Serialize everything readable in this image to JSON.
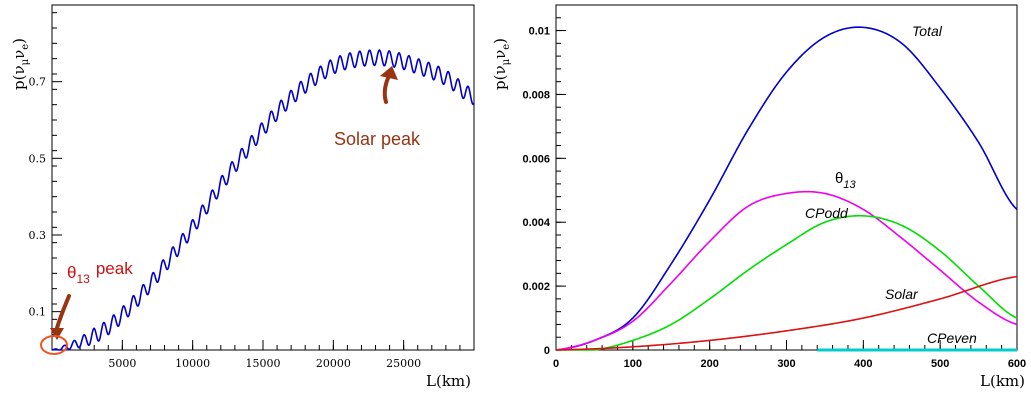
{
  "chart_data": [
    {
      "type": "line",
      "panel": "left",
      "xlabel": "L(km)",
      "ylabel": "p(ν_μ ν_e)",
      "ylabel_parts": {
        "p": "p(",
        "nu1": "ν",
        "sub1": "μ",
        "nu2": "ν",
        "sub2": "e",
        "close": ")"
      },
      "xlim": [
        0,
        30000
      ],
      "ylim": [
        0.0,
        0.9
      ],
      "x_ticks": [
        5000,
        10000,
        15000,
        20000,
        25000
      ],
      "x_tick_labels": [
        "5000",
        "10000",
        "15000",
        "20000",
        "25000"
      ],
      "y_ticks": [
        0.1,
        0.3,
        0.5,
        0.7
      ],
      "y_tick_labels": [
        "0.1",
        "0.3",
        "0.5",
        "0.7"
      ],
      "series": [
        {
          "color": "#0000cc",
          "x": [
            0,
            2000,
            4000,
            6000,
            8000,
            10000,
            12000,
            14000,
            16000,
            18000,
            20000,
            22000,
            24000,
            26000,
            28000,
            30000
          ],
          "y": [
            0.0,
            0.02,
            0.06,
            0.13,
            0.22,
            0.32,
            0.43,
            0.53,
            0.62,
            0.69,
            0.74,
            0.76,
            0.76,
            0.74,
            0.71,
            0.66
          ],
          "oscillation_period": 700,
          "oscillation_amplitude": 0.02
        }
      ],
      "annotations": {
        "solar": {
          "text": "Solar peak",
          "color": "#993311",
          "x": 24000,
          "y": 0.74
        },
        "theta": {
          "symbol": "θ",
          "subscript": "13",
          "text": "peak",
          "color": "#cc1111",
          "x": 0,
          "y": 0.0
        }
      }
    },
    {
      "type": "line",
      "panel": "right",
      "xlabel": "L(km)",
      "ylabel": "p(ν_μ ν_e)",
      "ylabel_parts": {
        "p": "p(",
        "nu1": "ν",
        "sub1": "μ",
        "nu2": "ν",
        "sub2": "e",
        "close": ")"
      },
      "xlim": [
        0,
        600
      ],
      "ylim": [
        0,
        0.0108
      ],
      "x_ticks": [
        0,
        100,
        200,
        300,
        400,
        500,
        600
      ],
      "x_tick_labels": [
        "0",
        "100",
        "200",
        "300",
        "400",
        "500",
        "600"
      ],
      "y_ticks": [
        0,
        0.002,
        0.004,
        0.006,
        0.008,
        0.01
      ],
      "y_tick_labels": [
        "0",
        "0.002",
        "0.004",
        "0.006",
        "0.008",
        "0.01"
      ],
      "series": [
        {
          "name": "Total",
          "color": "#0000cc",
          "x": [
            0,
            50,
            100,
            150,
            200,
            250,
            300,
            350,
            400,
            450,
            500,
            550,
            600
          ],
          "y": [
            0.0,
            0.0003,
            0.001,
            0.0027,
            0.0047,
            0.0069,
            0.0087,
            0.0098,
            0.0101,
            0.0096,
            0.0082,
            0.0065,
            0.0044
          ]
        },
        {
          "name": "θ13",
          "label_symbol": "θ",
          "label_sub": "13",
          "color": "#ee00ee",
          "x": [
            0,
            50,
            100,
            150,
            200,
            250,
            300,
            350,
            400,
            450,
            500,
            550,
            600
          ],
          "y": [
            0.0,
            0.0003,
            0.0009,
            0.0021,
            0.0034,
            0.0045,
            0.0049,
            0.0049,
            0.0044,
            0.0035,
            0.0025,
            0.0015,
            0.0008
          ]
        },
        {
          "name": "CPodd",
          "color": "#00dd00",
          "x": [
            0,
            50,
            100,
            150,
            200,
            250,
            300,
            350,
            400,
            450,
            500,
            550,
            600
          ],
          "y": [
            0.0,
            0.0,
            0.0003,
            0.0008,
            0.0016,
            0.0025,
            0.0033,
            0.004,
            0.0042,
            0.0039,
            0.0031,
            0.002,
            0.001
          ]
        },
        {
          "name": "Solar",
          "color": "#dd1111",
          "x": [
            0,
            100,
            200,
            300,
            400,
            500,
            600
          ],
          "y": [
            0.0,
            0.0001,
            0.0003,
            0.0006,
            0.001,
            0.0016,
            0.0023
          ]
        },
        {
          "name": "CPeven",
          "color": "#00cccc",
          "x": [
            340,
            400,
            500,
            600
          ],
          "y": [
            0.0,
            0.0,
            0.0,
            0.0
          ]
        }
      ]
    }
  ]
}
